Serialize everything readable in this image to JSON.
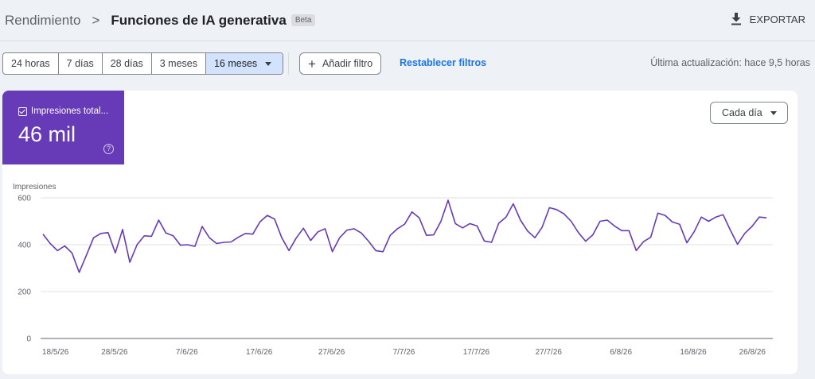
{
  "header": {
    "breadcrumb": "Rendimiento",
    "separator": ">",
    "title": "Funciones de IA generativa",
    "badge": "Beta",
    "export_label": "EXPORTAR"
  },
  "filters": {
    "ranges": [
      "24 horas",
      "7 días",
      "28 días",
      "3 meses",
      "16 meses"
    ],
    "active_range": "16 meses",
    "add_filter_label": "Añadir filtro",
    "reset_label": "Restablecer filtros",
    "last_update": "Última actualización: hace 9,5 horas"
  },
  "metric": {
    "label": "Impresiones total...",
    "value": "46 mil",
    "help_icon": "?",
    "color": "#673ab7"
  },
  "granularity": {
    "label": "Cada día"
  },
  "chart_data": {
    "type": "line",
    "ylabel": "Impresiones",
    "ylim": [
      0,
      600
    ],
    "yticks": [
      "0",
      "200",
      "400",
      "600"
    ],
    "xticks": [
      "18/5/26",
      "28/5/26",
      "7/6/26",
      "17/6/26",
      "27/6/26",
      "7/7/26",
      "17/7/26",
      "27/7/26",
      "6/8/26",
      "16/8/26",
      "26/8/26"
    ],
    "x_start": "18/5/26",
    "series": [
      {
        "color": "#673ab7",
        "values": [
          445,
          405,
          375,
          395,
          365,
          282,
          355,
          430,
          448,
          452,
          365,
          465,
          325,
          400,
          438,
          436,
          505,
          450,
          438,
          398,
          400,
          393,
          478,
          430,
          405,
          410,
          412,
          432,
          448,
          445,
          498,
          525,
          510,
          430,
          375,
          428,
          470,
          418,
          455,
          468,
          370,
          430,
          462,
          468,
          450,
          415,
          375,
          370,
          440,
          468,
          488,
          540,
          515,
          440,
          442,
          500,
          590,
          490,
          472,
          490,
          480,
          416,
          410,
          492,
          518,
          575,
          505,
          458,
          430,
          475,
          558,
          550,
          532,
          500,
          452,
          415,
          442,
          500,
          505,
          480,
          460,
          460,
          375,
          413,
          432,
          535,
          525,
          497,
          487,
          408,
          455,
          518,
          500,
          518,
          528,
          463,
          402,
          448,
          478,
          518,
          515
        ]
      }
    ]
  }
}
